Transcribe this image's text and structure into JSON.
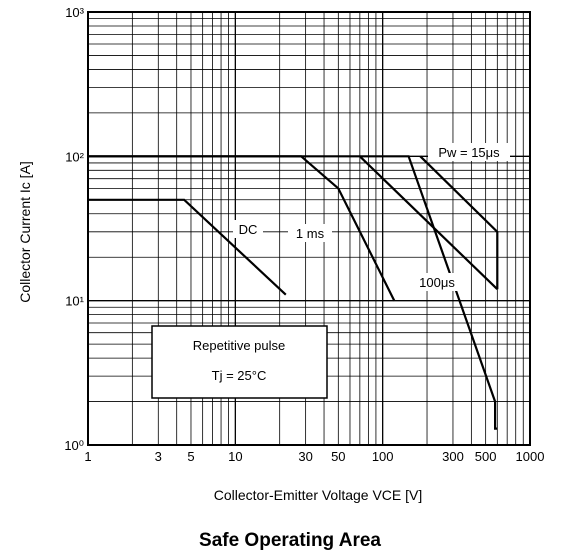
{
  "chart_data": {
    "type": "line",
    "title": "Safe Operating Area",
    "xlabel": "Collector-Emitter Voltage VCE [V]",
    "ylabel": "Collector Current Ic [A]",
    "xscale": "log",
    "yscale": "log",
    "xlim": [
      1,
      1000
    ],
    "ylim": [
      1,
      1000
    ],
    "grid": true,
    "x_tick_labels": [
      {
        "value": 1,
        "label": "1"
      },
      {
        "value": 3,
        "label": "3"
      },
      {
        "value": 5,
        "label": "5"
      },
      {
        "value": 10,
        "label": "10"
      },
      {
        "value": 30,
        "label": "30"
      },
      {
        "value": 50,
        "label": "50"
      },
      {
        "value": 100,
        "label": "100"
      },
      {
        "value": 300,
        "label": "300"
      },
      {
        "value": 500,
        "label": "500"
      },
      {
        "value": 1000,
        "label": "1000"
      }
    ],
    "y_tick_labels": [
      {
        "value": 1,
        "label": "10⁰"
      },
      {
        "value": 10,
        "label": "10¹"
      },
      {
        "value": 100,
        "label": "10²"
      },
      {
        "value": 1000,
        "label": "10³"
      }
    ],
    "series": [
      {
        "name": "DC",
        "x": [
          1,
          4.5,
          22
        ],
        "y": [
          50,
          50,
          11
        ]
      },
      {
        "name": "1 ms",
        "x": [
          1,
          28,
          50,
          120
        ],
        "y": [
          100,
          100,
          60,
          10
        ]
      },
      {
        "name": "100μs",
        "x": [
          70,
          600
        ],
        "y": [
          100,
          12
        ]
      },
      {
        "name": "Pw = 15μs",
        "x": [
          180,
          600,
          600
        ],
        "y": [
          100,
          30,
          12
        ]
      },
      {
        "name": "Repetitive pulse limit",
        "x": [
          1,
          150,
          580,
          580,
          600
        ],
        "y": [
          100,
          100,
          2,
          1.3,
          1.3
        ]
      }
    ],
    "annotations": {
      "dc": "DC",
      "ms1": "1 ms",
      "us100": "100μs",
      "pw": "Pw = 15μs",
      "box_line1": "Repetitive pulse",
      "box_line2": "Tj = 25°C"
    }
  }
}
